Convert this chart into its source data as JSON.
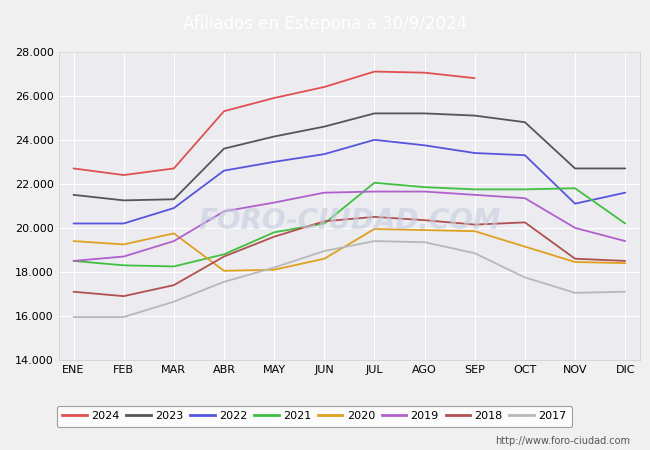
{
  "title": "Afiliados en Estepona a 30/9/2024",
  "title_bgcolor": "#5b8fd4",
  "title_color": "white",
  "months": [
    "ENE",
    "FEB",
    "MAR",
    "ABR",
    "MAY",
    "JUN",
    "JUL",
    "AGO",
    "SEP",
    "OCT",
    "NOV",
    "DIC"
  ],
  "ylim": [
    14000,
    28000
  ],
  "yticks": [
    14000,
    16000,
    18000,
    20000,
    22000,
    24000,
    26000,
    28000
  ],
  "series": [
    {
      "year": "2024",
      "color": "#e05050",
      "data": [
        22700,
        22400,
        22700,
        25300,
        25900,
        26400,
        27100,
        27050,
        26800,
        null,
        null,
        null
      ]
    },
    {
      "year": "2023",
      "color": "#555555",
      "data": [
        21500,
        21250,
        21300,
        23600,
        24150,
        24600,
        25200,
        25200,
        25100,
        24800,
        22700,
        22700
      ]
    },
    {
      "year": "2022",
      "color": "#5555dd",
      "data": [
        20200,
        20200,
        20900,
        22600,
        23000,
        23350,
        24000,
        23750,
        23400,
        23300,
        21100,
        21600
      ]
    },
    {
      "year": "2021",
      "color": "#40c040",
      "data": [
        18500,
        18300,
        18250,
        18800,
        19800,
        20200,
        22050,
        21850,
        21750,
        21750,
        21800,
        20200
      ]
    },
    {
      "year": "2020",
      "color": "#e0a020",
      "data": [
        19400,
        19250,
        19750,
        18050,
        18100,
        18600,
        19950,
        19900,
        19850,
        19150,
        18450,
        18400
      ]
    },
    {
      "year": "2019",
      "color": "#b060cc",
      "data": [
        18500,
        18700,
        19400,
        20750,
        21150,
        21600,
        21650,
        21650,
        21500,
        21350,
        20000,
        19400
      ]
    },
    {
      "year": "2018",
      "color": "#b05050",
      "data": [
        17100,
        16900,
        17400,
        18700,
        19600,
        20300,
        20500,
        20350,
        20150,
        20250,
        18600,
        18500
      ]
    },
    {
      "year": "2017",
      "color": "#b8b8b8",
      "data": [
        15950,
        15950,
        16650,
        17550,
        18200,
        18950,
        19400,
        19350,
        18850,
        17750,
        17050,
        17100
      ]
    }
  ],
  "watermark": "FORO-CIUDAD.COM",
  "url": "http://www.foro-ciudad.com",
  "background_color": "#f0f0f0",
  "plot_bgcolor": "#f0f0f4"
}
